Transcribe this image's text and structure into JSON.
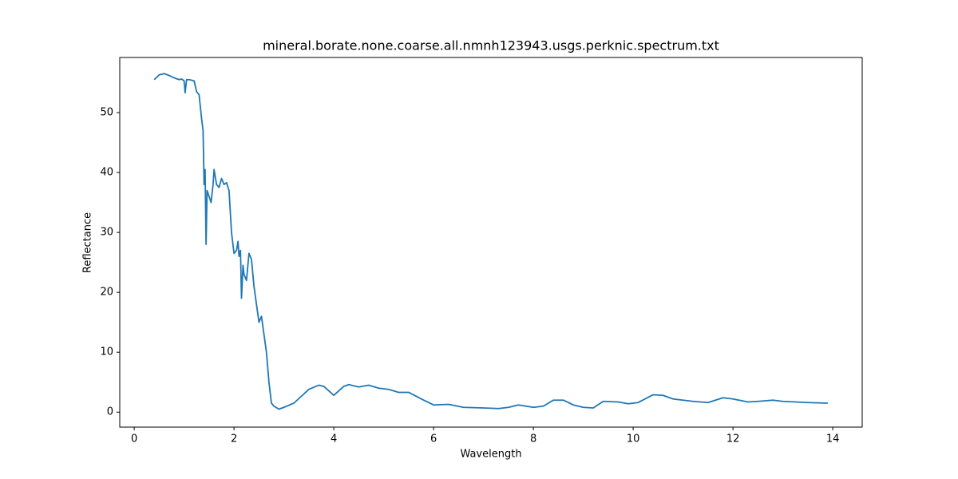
{
  "chart_data": {
    "type": "line",
    "title": "mineral.borate.none.coarse.all.nmnh123943.usgs.perknic.spectrum.txt",
    "xlabel": "Wavelength",
    "ylabel": "Reflectance",
    "xlim": [
      -0.29,
      14.59
    ],
    "ylim": [
      -2.5,
      59.2
    ],
    "xticks": [
      0,
      2,
      4,
      6,
      8,
      10,
      12,
      14
    ],
    "yticks": [
      0,
      10,
      20,
      30,
      40,
      50
    ],
    "series": [
      {
        "color": "#1f77b4",
        "x": [
          0.4,
          0.5,
          0.6,
          0.7,
          0.8,
          0.9,
          0.95,
          1.0,
          1.02,
          1.05,
          1.1,
          1.2,
          1.25,
          1.3,
          1.35,
          1.38,
          1.4,
          1.42,
          1.44,
          1.46,
          1.5,
          1.54,
          1.58,
          1.6,
          1.65,
          1.7,
          1.75,
          1.8,
          1.85,
          1.9,
          1.95,
          2.0,
          2.05,
          2.08,
          2.1,
          2.13,
          2.15,
          2.18,
          2.2,
          2.25,
          2.3,
          2.35,
          2.4,
          2.45,
          2.5,
          2.55,
          2.6,
          2.65,
          2.7,
          2.75,
          2.8,
          2.9,
          3.0,
          3.2,
          3.5,
          3.7,
          3.8,
          4.0,
          4.2,
          4.3,
          4.5,
          4.7,
          4.9,
          5.1,
          5.3,
          5.5,
          5.8,
          6.0,
          6.3,
          6.6,
          7.0,
          7.3,
          7.5,
          7.7,
          8.0,
          8.2,
          8.4,
          8.6,
          8.8,
          9.0,
          9.2,
          9.4,
          9.7,
          9.9,
          10.1,
          10.4,
          10.6,
          10.8,
          11.2,
          11.5,
          11.8,
          12.0,
          12.3,
          12.5,
          12.8,
          13.0,
          13.5,
          13.9
        ],
        "values": [
          55.5,
          56.3,
          56.5,
          56.2,
          55.8,
          55.5,
          55.6,
          55.3,
          53.3,
          55.5,
          55.5,
          55.3,
          53.5,
          53,
          49,
          47,
          38,
          40.5,
          28,
          37,
          36,
          35,
          38,
          40.5,
          38,
          37.5,
          39,
          38,
          38.3,
          37,
          30,
          26.5,
          27,
          28.5,
          26,
          27,
          19,
          24.5,
          23,
          22,
          26.5,
          25.5,
          21,
          18,
          15,
          16,
          13,
          10,
          5,
          1.5,
          1,
          0.5,
          0.8,
          1.5,
          3.8,
          4.5,
          4.3,
          2.8,
          4.3,
          4.6,
          4.2,
          4.5,
          4,
          3.8,
          3.3,
          3.3,
          2,
          1.2,
          1.3,
          0.8,
          0.7,
          0.6,
          0.8,
          1.2,
          0.8,
          1,
          2,
          2,
          1.2,
          0.8,
          0.7,
          1.8,
          1.7,
          1.4,
          1.6,
          2.9,
          2.8,
          2.2,
          1.8,
          1.6,
          2.4,
          2.2,
          1.7,
          1.8,
          2,
          1.8,
          1.6,
          1.5
        ]
      }
    ]
  }
}
